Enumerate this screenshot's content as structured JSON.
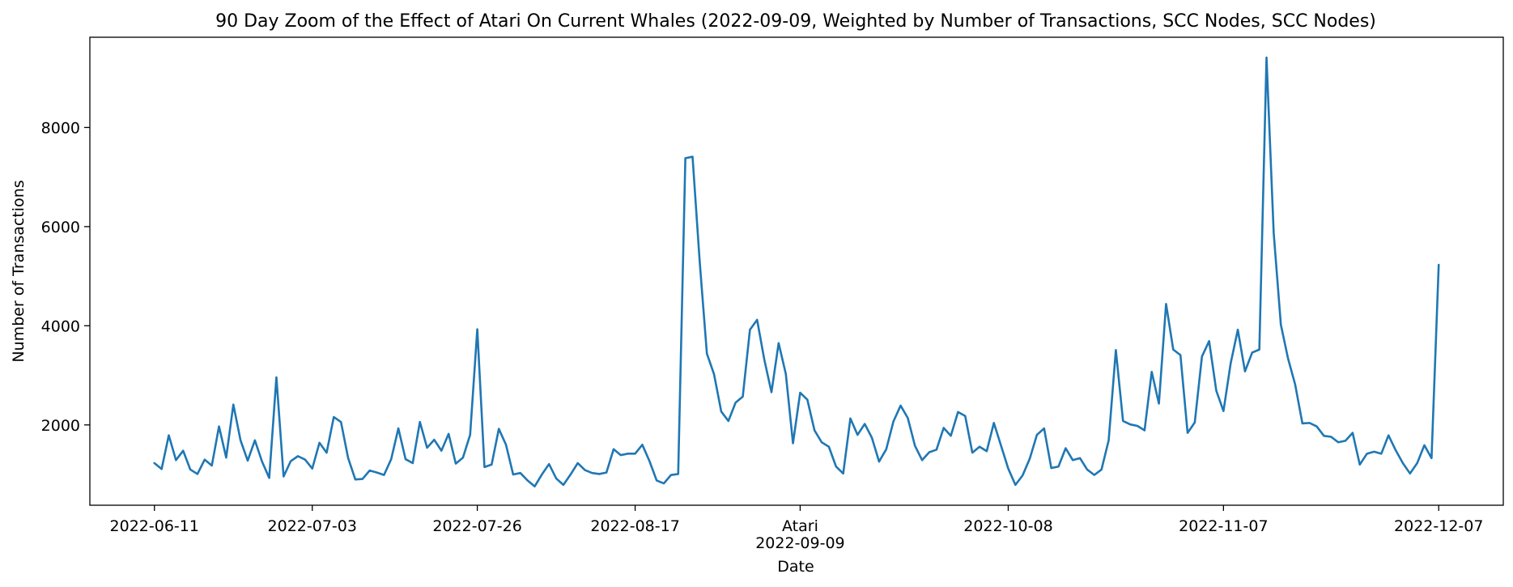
{
  "chart_data": {
    "type": "line",
    "title": "90 Day Zoom of the Effect of Atari On Current Whales (2022-09-09, Weighted by Number of Transactions, SCC Nodes, SCC Nodes)",
    "xlabel": "Date",
    "ylabel": "Number of Transactions",
    "x_start": "2022-06-11",
    "x_end": "2022-12-07",
    "xlim": [
      "2022-06-02",
      "2022-12-16"
    ],
    "ylim": [
      380,
      9820
    ],
    "grid": false,
    "legend": "none",
    "series_color": "#1f77b4",
    "event": {
      "label": "Atari",
      "date": "2022-09-09"
    },
    "x_ticks": [
      "2022-06-11",
      "2022-07-03",
      "2022-07-26",
      "2022-08-17",
      "2022-09-09",
      "2022-10-08",
      "2022-11-07",
      "2022-12-07"
    ],
    "y_ticks": [
      2000,
      4000,
      6000,
      8000
    ],
    "y_tick_labels": [
      "2000",
      "4000",
      "6000",
      "8000"
    ],
    "values": [
      1230,
      1110,
      1790,
      1290,
      1480,
      1100,
      1010,
      1300,
      1180,
      1970,
      1340,
      2410,
      1690,
      1280,
      1690,
      1260,
      930,
      2960,
      960,
      1270,
      1370,
      1300,
      1120,
      1640,
      1440,
      2160,
      2060,
      1330,
      900,
      910,
      1080,
      1040,
      990,
      1310,
      1930,
      1310,
      1230,
      2060,
      1540,
      1700,
      1480,
      1820,
      1220,
      1340,
      1800,
      3930,
      1150,
      1200,
      1920,
      1600,
      1000,
      1030,
      880,
      760,
      1000,
      1210,
      920,
      790,
      1000,
      1230,
      1090,
      1030,
      1010,
      1040,
      1510,
      1390,
      1420,
      1420,
      1600,
      1270,
      880,
      820,
      990,
      1010,
      7380,
      7410,
      5290,
      3440,
      3020,
      2270,
      2080,
      2450,
      2570,
      3920,
      4120,
      3320,
      2660,
      3650,
      3030,
      1630,
      2650,
      2510,
      1890,
      1650,
      1560,
      1160,
      1020,
      2130,
      1800,
      2020,
      1740,
      1260,
      1510,
      2070,
      2390,
      2140,
      1580,
      1290,
      1450,
      1500,
      1940,
      1780,
      2260,
      2180,
      1440,
      1560,
      1470,
      2040,
      1580,
      1120,
      790,
      980,
      1320,
      1800,
      1930,
      1130,
      1160,
      1530,
      1290,
      1330,
      1100,
      990,
      1100,
      1690,
      3510,
      2080,
      2010,
      1980,
      1890,
      3070,
      2430,
      4440,
      3520,
      3410,
      1840,
      2050,
      3380,
      3690,
      2690,
      2280,
      3240,
      3920,
      3080,
      3460,
      3520,
      9410,
      5870,
      4020,
      3340,
      2810,
      2030,
      2040,
      1970,
      1780,
      1760,
      1650,
      1680,
      1840,
      1200,
      1420,
      1460,
      1420,
      1790,
      1490,
      1230,
      1020,
      1230,
      1590,
      1330,
      5230
    ]
  }
}
